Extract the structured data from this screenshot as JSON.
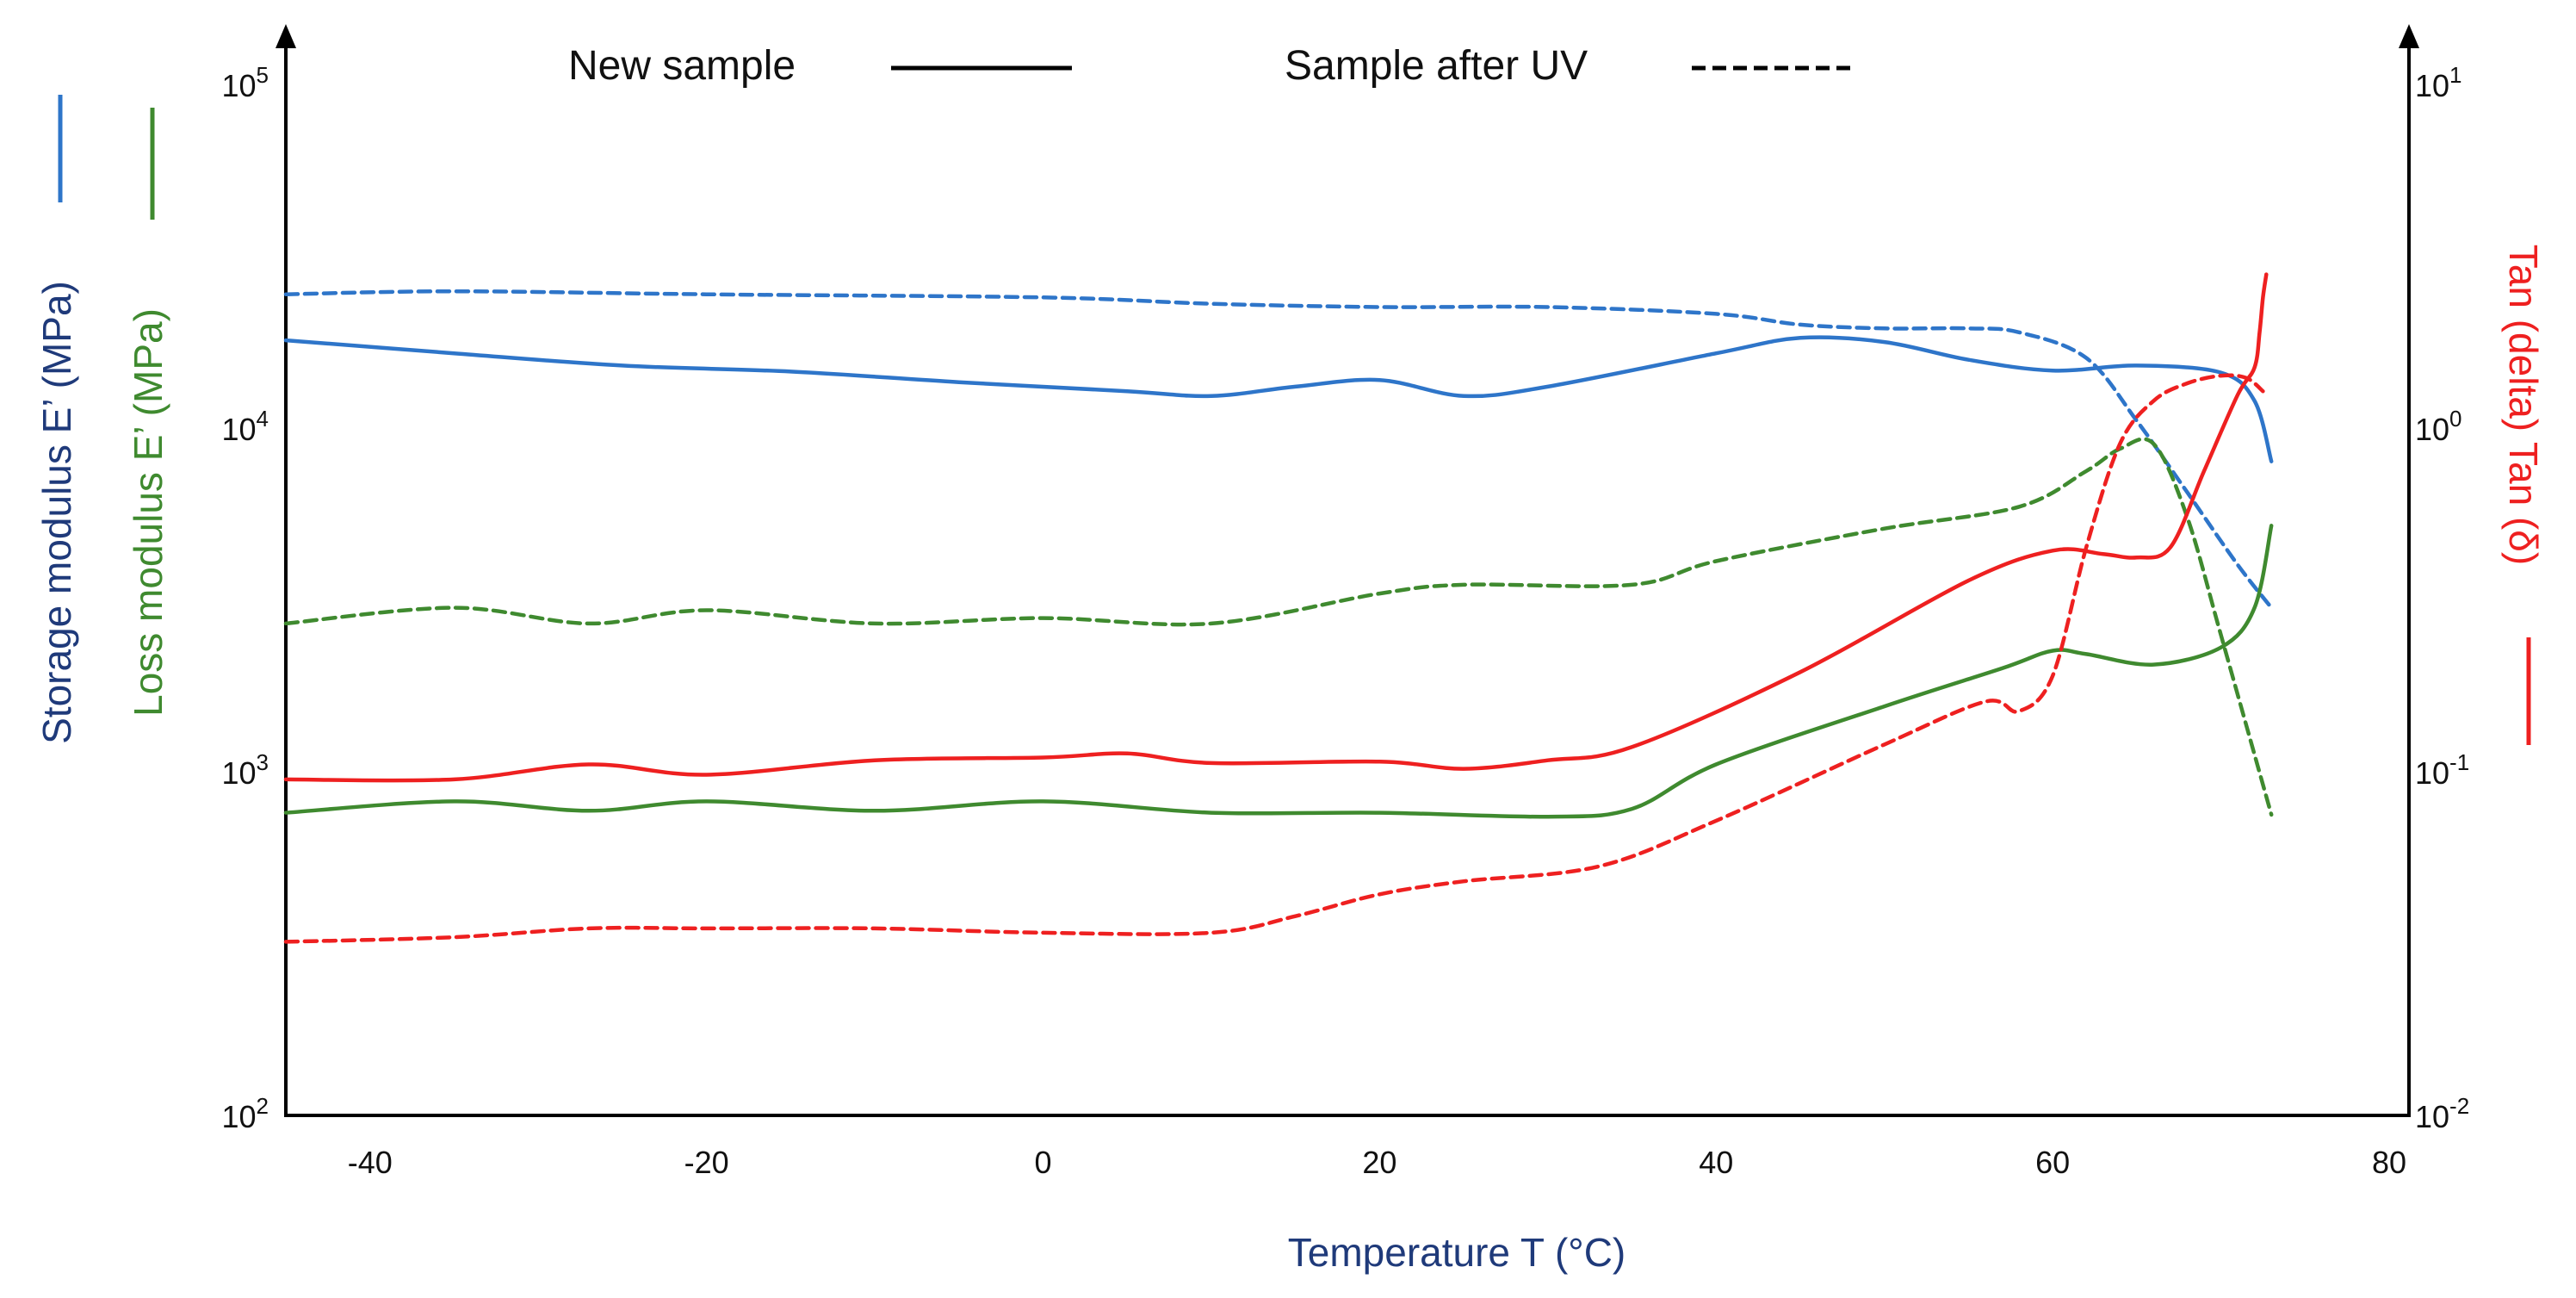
{
  "chart_data": {
    "type": "line",
    "title": "",
    "legend": {
      "position": "top",
      "entries": [
        {
          "label": "New sample",
          "style": "solid"
        },
        {
          "label": "Sample after UV",
          "style": "dashed"
        }
      ]
    },
    "x_axis": {
      "label": "Temperature T (°C)",
      "range": [
        -45,
        80
      ],
      "ticks": [
        "-40",
        "-20",
        "0",
        "20",
        "40",
        "60",
        "80"
      ],
      "tick_values": [
        -40,
        -20,
        0,
        20,
        40,
        60,
        80
      ]
    },
    "y_left": {
      "labels": [
        "Storage modulus E’ (MPa)",
        "Loss modulus E’ (MPa)"
      ],
      "scale": "log",
      "range": [
        100,
        100000
      ],
      "ticks": [
        {
          "value": 100,
          "base": "10",
          "exp": "2"
        },
        {
          "value": 1000,
          "base": "10",
          "exp": "3"
        },
        {
          "value": 10000,
          "base": "10",
          "exp": "4"
        },
        {
          "value": 100000,
          "base": "10",
          "exp": "5"
        }
      ]
    },
    "y_right": {
      "label": "Tan (delta) Tan (δ)",
      "scale": "log",
      "range": [
        0.01,
        10
      ],
      "ticks": [
        {
          "value": 0.01,
          "base": "10",
          "exp": "-2"
        },
        {
          "value": 0.1,
          "base": "10",
          "exp": "-1"
        },
        {
          "value": 1,
          "base": "10",
          "exp": "0"
        },
        {
          "value": 10,
          "base": "10",
          "exp": "1"
        }
      ]
    },
    "colors": {
      "storage": "#2e75c9",
      "loss": "#3f8a2f",
      "tan": "#ee2020",
      "axis": "#000000",
      "axis_title": "#1f3a7a"
    },
    "series": [
      {
        "name": "Storage modulus E’ - New sample",
        "group": "storage",
        "style": "solid",
        "axis": "left",
        "x": [
          -45,
          -35,
          -25,
          -15,
          -5,
          5,
          10,
          15,
          20,
          25,
          30,
          40,
          45,
          50,
          55,
          60,
          65,
          70,
          72,
          73
        ],
        "y": [
          18000,
          16500,
          15200,
          14600,
          13600,
          12800,
          12400,
          13200,
          13800,
          12400,
          13200,
          16500,
          18300,
          17800,
          15800,
          14700,
          15200,
          14500,
          12000,
          8000
        ]
      },
      {
        "name": "Storage modulus E’ - Sample after UV",
        "group": "storage",
        "style": "dashed",
        "axis": "left",
        "x": [
          -45,
          -35,
          -20,
          0,
          10,
          20,
          30,
          40,
          45,
          50,
          55,
          58,
          62,
          65,
          68,
          71,
          73
        ],
        "y": [
          24500,
          25000,
          24500,
          24000,
          23000,
          22500,
          22500,
          21500,
          20000,
          19500,
          19500,
          19000,
          16000,
          10500,
          6500,
          4000,
          3000
        ]
      },
      {
        "name": "Loss modulus E’ - New sample",
        "group": "loss",
        "style": "solid",
        "axis": "left",
        "x": [
          -45,
          -35,
          -27,
          -20,
          -10,
          0,
          10,
          20,
          30,
          35,
          40,
          50,
          57,
          60,
          62,
          66,
          70,
          72,
          73
        ],
        "y": [
          760,
          820,
          770,
          820,
          770,
          820,
          760,
          760,
          740,
          780,
          1050,
          1550,
          2000,
          2250,
          2200,
          2050,
          2300,
          3000,
          5200
        ]
      },
      {
        "name": "Loss modulus E’ - Sample after UV",
        "group": "loss",
        "style": "dashed",
        "axis": "left",
        "x": [
          -45,
          -35,
          -27,
          -20,
          -10,
          0,
          10,
          20,
          25,
          35,
          40,
          50,
          58,
          62,
          64,
          66,
          68,
          70,
          73
        ],
        "y": [
          2700,
          3000,
          2700,
          2950,
          2700,
          2800,
          2700,
          3300,
          3500,
          3500,
          4100,
          5100,
          5900,
          7500,
          8700,
          9000,
          5500,
          2500,
          750
        ]
      },
      {
        "name": "Tan (δ) - New sample",
        "group": "tan",
        "style": "solid",
        "axis": "right",
        "x": [
          -45,
          -35,
          -27,
          -20,
          -10,
          0,
          5,
          10,
          20,
          25,
          30,
          35,
          45,
          55,
          60,
          63,
          65,
          67,
          69,
          71,
          72,
          72.3,
          72.5,
          72.7
        ],
        "y": [
          0.095,
          0.095,
          0.105,
          0.098,
          0.108,
          0.11,
          0.113,
          0.106,
          0.107,
          0.102,
          0.108,
          0.118,
          0.195,
          0.36,
          0.44,
          0.43,
          0.42,
          0.45,
          0.75,
          1.25,
          1.5,
          1.9,
          2.4,
          2.8
        ]
      },
      {
        "name": "Tan (δ) - Sample after UV",
        "group": "tan",
        "style": "dashed",
        "axis": "right",
        "x": [
          -45,
          -35,
          -27,
          -20,
          -10,
          0,
          10,
          15,
          20,
          25,
          33,
          40,
          50,
          56,
          58,
          60,
          62,
          64,
          66,
          68,
          70,
          71.5,
          72.5
        ],
        "y": [
          0.032,
          0.033,
          0.035,
          0.035,
          0.035,
          0.034,
          0.034,
          0.038,
          0.044,
          0.048,
          0.053,
          0.072,
          0.12,
          0.16,
          0.15,
          0.19,
          0.45,
          0.9,
          1.2,
          1.35,
          1.42,
          1.4,
          1.28
        ]
      }
    ]
  }
}
